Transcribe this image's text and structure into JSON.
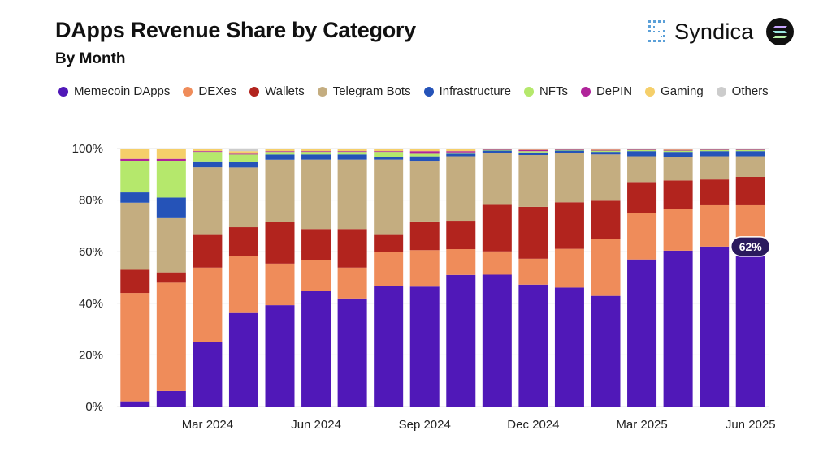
{
  "title": "DApps Revenue Share by Category",
  "subtitle": "By Month",
  "brand": {
    "name": "Syndica",
    "icon": "syndica-logo-icon",
    "secondary_icon": "solana-icon"
  },
  "colors": {
    "Memecoin DApps": "#5018b8",
    "DEXes": "#ef8c5a",
    "Wallets": "#b2241e",
    "Telegram Bots": "#c4ad80",
    "Infrastructure": "#2553b8",
    "NFTs": "#b5e86c",
    "DePIN": "#b0249a",
    "Gaming": "#f5cf6a",
    "Others": "#cccccc"
  },
  "chart_data": {
    "type": "bar",
    "stacked": true,
    "title": "DApps Revenue Share by Category",
    "subtitle": "By Month",
    "ylabel": "",
    "xlabel": "",
    "ylim": [
      0,
      100
    ],
    "yticks": [
      "0%",
      "20%",
      "40%",
      "60%",
      "80%",
      "100%"
    ],
    "categories": [
      "Jan 2024",
      "Feb 2024",
      "Mar 2024",
      "Apr 2024",
      "May 2024",
      "Jun 2024",
      "Jul 2024",
      "Aug 2024",
      "Sep 2024",
      "Oct 2024",
      "Nov 2024",
      "Dec 2024",
      "Jan 2025",
      "Feb 2025",
      "Mar 2025",
      "Apr 2025",
      "May 2025",
      "Jun 2025"
    ],
    "xtick_labels": [
      "",
      "",
      "Mar 2024",
      "",
      "",
      "Jun 2024",
      "",
      "",
      "Sep 2024",
      "",
      "",
      "Dec 2024",
      "",
      "",
      "Mar 2025",
      "",
      "",
      "Jun 2025"
    ],
    "legend": [
      "Memecoin DApps",
      "DEXes",
      "Wallets",
      "Telegram Bots",
      "Infrastructure",
      "NFTs",
      "DePIN",
      "Gaming",
      "Others"
    ],
    "series": [
      {
        "name": "Memecoin DApps",
        "values": [
          2,
          6,
          25,
          36,
          39,
          45,
          42,
          47,
          46,
          51,
          51,
          47,
          46,
          43,
          57,
          60,
          62,
          62
        ]
      },
      {
        "name": "DEXes",
        "values": [
          42,
          42,
          29,
          22,
          16,
          12,
          12,
          13,
          14,
          10,
          9,
          10,
          15,
          22,
          18,
          16,
          16,
          16
        ]
      },
      {
        "name": "Wallets",
        "values": [
          9,
          4,
          13,
          11,
          16,
          12,
          15,
          7,
          11,
          11,
          18,
          20,
          18,
          15,
          12,
          11,
          10,
          11
        ]
      },
      {
        "name": "Telegram Bots",
        "values": [
          26,
          21,
          26,
          23,
          24,
          27,
          27,
          29,
          23,
          25,
          20,
          20,
          19,
          18,
          10,
          9,
          9,
          8
        ]
      },
      {
        "name": "Infrastructure",
        "values": [
          4,
          8,
          2,
          2,
          2,
          2,
          2,
          1,
          2,
          1,
          1,
          1,
          1,
          1,
          2,
          2,
          2,
          2
        ]
      },
      {
        "name": "NFTs",
        "values": [
          12,
          14,
          4,
          3,
          1,
          1,
          1,
          2,
          1,
          0.5,
          0.3,
          0.5,
          0.3,
          0.5,
          0.5,
          0.5,
          0.5,
          0.5
        ]
      },
      {
        "name": "DePIN",
        "values": [
          1,
          1,
          0.3,
          0.3,
          0.3,
          0.3,
          0.3,
          0.3,
          1,
          0.5,
          0.3,
          0.5,
          0.3,
          0.3,
          0.3,
          0.3,
          0.3,
          0.3
        ]
      },
      {
        "name": "Gaming",
        "values": [
          4,
          4,
          1,
          1,
          1,
          1,
          1,
          1,
          1,
          1,
          0.2,
          0.5,
          0.2,
          0.5,
          0.2,
          0.5,
          0.2,
          0.2
        ]
      },
      {
        "name": "Others",
        "values": [
          0,
          0,
          0,
          1,
          0,
          0,
          0,
          0,
          0,
          0,
          0,
          0,
          0,
          0,
          0,
          0,
          0,
          0
        ]
      }
    ],
    "annotations": [
      {
        "text": "62%",
        "category": "Jun 2025",
        "series": "Memecoin DApps",
        "value": 62
      }
    ]
  }
}
